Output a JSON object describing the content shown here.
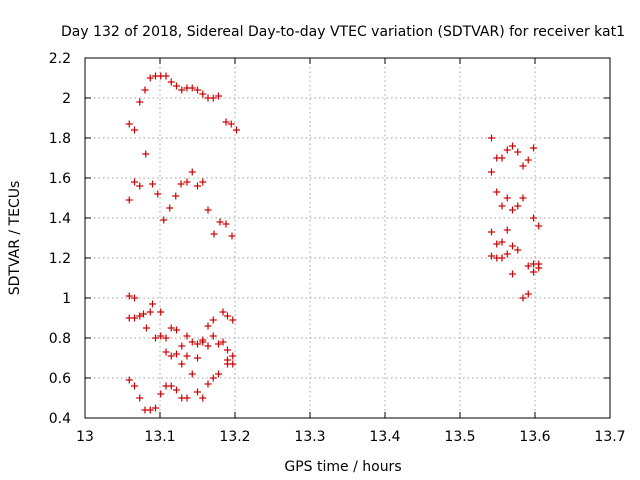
{
  "chart_data": {
    "type": "scatter",
    "title": "Day 132 of 2018, Sidereal Day-to-day VTEC variation (SDTVAR) for receiver kat1",
    "xlabel": "GPS time / hours",
    "ylabel": "SDTVAR / TECUs",
    "xlim": [
      13,
      13.7
    ],
    "ylim": [
      0.4,
      2.2
    ],
    "xticks": [
      13,
      13.1,
      13.2,
      13.3,
      13.4,
      13.5,
      13.6,
      13.7
    ],
    "xtick_labels": [
      "13",
      "13.1",
      "13.2",
      "13.3",
      "13.4",
      "13.5",
      "13.6",
      "13.7"
    ],
    "yticks": [
      0.4,
      0.6,
      0.8,
      1,
      1.2,
      1.4,
      1.6,
      1.8,
      2,
      2.2
    ],
    "ytick_labels": [
      "0.4",
      "0.6",
      "0.8",
      "1",
      "1.2",
      "1.4",
      "1.6",
      "1.8",
      "2",
      "2.2"
    ],
    "grid": true,
    "marker": "+",
    "color": "#cc0000",
    "series": [
      {
        "name": "kat1",
        "points": [
          [
            13.059,
            1.87
          ],
          [
            13.066,
            1.84
          ],
          [
            13.073,
            1.98
          ],
          [
            13.08,
            2.04
          ],
          [
            13.087,
            2.1
          ],
          [
            13.094,
            2.11
          ],
          [
            13.101,
            2.11
          ],
          [
            13.108,
            2.11
          ],
          [
            13.115,
            2.08
          ],
          [
            13.122,
            2.06
          ],
          [
            13.129,
            2.04
          ],
          [
            13.136,
            2.05
          ],
          [
            13.143,
            2.05
          ],
          [
            13.15,
            2.04
          ],
          [
            13.157,
            2.02
          ],
          [
            13.164,
            2.0
          ],
          [
            13.171,
            2.0
          ],
          [
            13.178,
            2.01
          ],
          [
            13.188,
            1.88
          ],
          [
            13.195,
            1.87
          ],
          [
            13.202,
            1.84
          ],
          [
            13.059,
            1.49
          ],
          [
            13.066,
            1.58
          ],
          [
            13.073,
            1.56
          ],
          [
            13.081,
            1.72
          ],
          [
            13.09,
            1.57
          ],
          [
            13.097,
            1.52
          ],
          [
            13.105,
            1.39
          ],
          [
            13.113,
            1.45
          ],
          [
            13.121,
            1.51
          ],
          [
            13.128,
            1.57
          ],
          [
            13.136,
            1.58
          ],
          [
            13.143,
            1.63
          ],
          [
            13.15,
            1.56
          ],
          [
            13.157,
            1.58
          ],
          [
            13.164,
            1.44
          ],
          [
            13.172,
            1.32
          ],
          [
            13.18,
            1.38
          ],
          [
            13.188,
            1.37
          ],
          [
            13.196,
            1.31
          ],
          [
            13.059,
            1.01
          ],
          [
            13.066,
            1.0
          ],
          [
            13.059,
            0.9
          ],
          [
            13.066,
            0.9
          ],
          [
            13.073,
            0.91
          ],
          [
            13.078,
            0.92
          ],
          [
            13.082,
            0.85
          ],
          [
            13.087,
            0.93
          ],
          [
            13.09,
            0.97
          ],
          [
            13.094,
            0.8
          ],
          [
            13.101,
            0.93
          ],
          [
            13.101,
            0.81
          ],
          [
            13.108,
            0.8
          ],
          [
            13.108,
            0.73
          ],
          [
            13.115,
            0.85
          ],
          [
            13.115,
            0.71
          ],
          [
            13.122,
            0.84
          ],
          [
            13.122,
            0.72
          ],
          [
            13.129,
            0.76
          ],
          [
            13.129,
            0.67
          ],
          [
            13.136,
            0.81
          ],
          [
            13.136,
            0.71
          ],
          [
            13.143,
            0.78
          ],
          [
            13.15,
            0.77
          ],
          [
            13.15,
            0.7
          ],
          [
            13.157,
            0.79
          ],
          [
            13.157,
            0.78
          ],
          [
            13.164,
            0.76
          ],
          [
            13.164,
            0.86
          ],
          [
            13.171,
            0.89
          ],
          [
            13.171,
            0.81
          ],
          [
            13.178,
            0.77
          ],
          [
            13.184,
            0.93
          ],
          [
            13.184,
            0.78
          ],
          [
            13.19,
            0.91
          ],
          [
            13.19,
            0.74
          ],
          [
            13.197,
            0.89
          ],
          [
            13.197,
            0.71
          ],
          [
            13.197,
            0.67
          ],
          [
            13.19,
            0.69
          ],
          [
            13.059,
            0.59
          ],
          [
            13.066,
            0.56
          ],
          [
            13.073,
            0.5
          ],
          [
            13.08,
            0.44
          ],
          [
            13.087,
            0.44
          ],
          [
            13.094,
            0.45
          ],
          [
            13.101,
            0.52
          ],
          [
            13.108,
            0.56
          ],
          [
            13.115,
            0.56
          ],
          [
            13.122,
            0.54
          ],
          [
            13.129,
            0.5
          ],
          [
            13.136,
            0.5
          ],
          [
            13.143,
            0.62
          ],
          [
            13.15,
            0.53
          ],
          [
            13.157,
            0.5
          ],
          [
            13.164,
            0.57
          ],
          [
            13.171,
            0.6
          ],
          [
            13.178,
            0.62
          ],
          [
            13.19,
            0.67
          ],
          [
            13.542,
            1.8
          ],
          [
            13.542,
            1.63
          ],
          [
            13.549,
            1.7
          ],
          [
            13.556,
            1.7
          ],
          [
            13.549,
            1.53
          ],
          [
            13.556,
            1.46
          ],
          [
            13.563,
            1.74
          ],
          [
            13.563,
            1.5
          ],
          [
            13.57,
            1.76
          ],
          [
            13.57,
            1.44
          ],
          [
            13.577,
            1.73
          ],
          [
            13.577,
            1.46
          ],
          [
            13.584,
            1.66
          ],
          [
            13.584,
            1.5
          ],
          [
            13.591,
            1.69
          ],
          [
            13.598,
            1.75
          ],
          [
            13.598,
            1.4
          ],
          [
            13.605,
            1.36
          ],
          [
            13.542,
            1.33
          ],
          [
            13.549,
            1.27
          ],
          [
            13.556,
            1.28
          ],
          [
            13.563,
            1.34
          ],
          [
            13.542,
            1.21
          ],
          [
            13.549,
            1.2
          ],
          [
            13.556,
            1.2
          ],
          [
            13.563,
            1.22
          ],
          [
            13.57,
            1.26
          ],
          [
            13.57,
            1.12
          ],
          [
            13.577,
            1.24
          ],
          [
            13.584,
            1.0
          ],
          [
            13.591,
            1.02
          ],
          [
            13.591,
            1.16
          ],
          [
            13.598,
            1.13
          ],
          [
            13.598,
            1.17
          ],
          [
            13.605,
            1.15
          ],
          [
            13.605,
            1.17
          ]
        ]
      }
    ]
  }
}
